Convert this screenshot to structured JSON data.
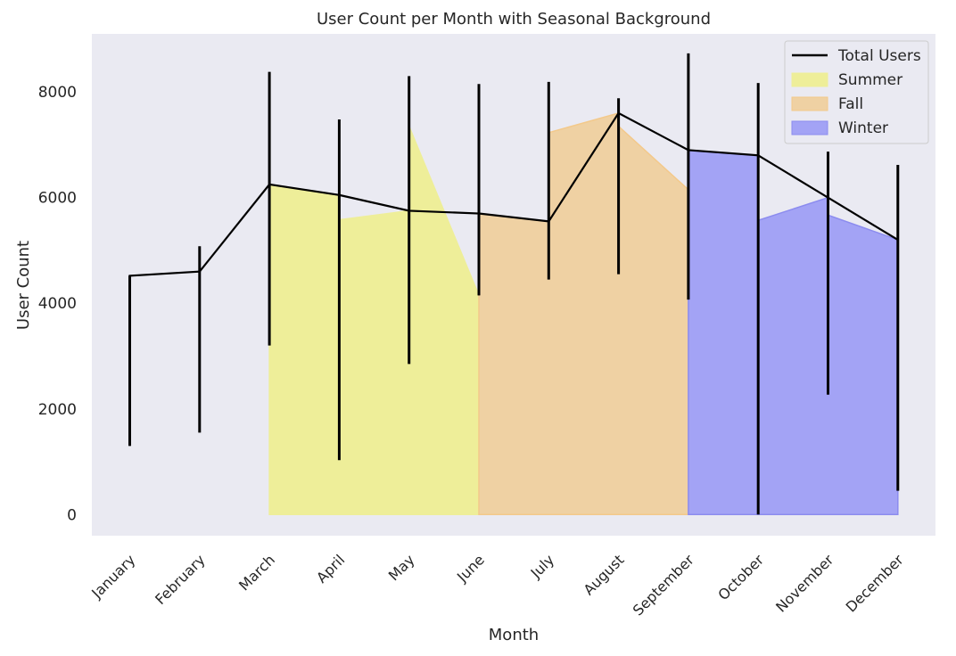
{
  "chart_data": {
    "type": "line",
    "title": "User Count per Month with Seasonal Background",
    "xlabel": "Month",
    "ylabel": "User Count",
    "categories": [
      "January",
      "February",
      "March",
      "April",
      "May",
      "June",
      "July",
      "August",
      "September",
      "October",
      "November",
      "December"
    ],
    "ylim": [
      -400,
      9100
    ],
    "yticks": [
      0,
      2000,
      4000,
      6000,
      8000
    ],
    "grid": false,
    "legend_position": "top-right",
    "background_color": "#eaeaf2",
    "series": [
      {
        "name": "Total Users",
        "color": "#000000",
        "values": [
          4520,
          4600,
          6250,
          6050,
          5750,
          5700,
          5550,
          7600,
          6900,
          6800,
          6000,
          5200
        ],
        "segments": [
          {
            "x": 0,
            "start": 1300,
            "end": 4520
          },
          {
            "x": 1,
            "start": 1850,
            "end": 4600
          },
          {
            "x": 2,
            "start": 5000,
            "end": 6250
          },
          {
            "x": 3,
            "start": 5580,
            "end": 6050
          },
          {
            "x": 4,
            "start": 7350,
            "end": 5750
          },
          {
            "x": 5,
            "start": 4150,
            "end": 5700
          },
          {
            "x": 6,
            "start": 7230,
            "end": 5550
          },
          {
            "x": 7,
            "start": 7350,
            "end": 7600
          },
          {
            "x": 8,
            "start": 6150,
            "end": 6900
          },
          {
            "x": 9,
            "start": 5570,
            "end": 6800
          },
          {
            "x": 10,
            "start": 5670,
            "end": 6000
          },
          {
            "x": 11,
            "start": 5200,
            "end": 5200
          }
        ],
        "error_bars": [
          {
            "x": 0,
            "low": 1300,
            "high": 4520
          },
          {
            "x": 1,
            "low": 1550,
            "high": 5080
          },
          {
            "x": 2,
            "low": 3200,
            "high": 8380
          },
          {
            "x": 3,
            "low": 1030,
            "high": 7480
          },
          {
            "x": 4,
            "low": 2850,
            "high": 8300
          },
          {
            "x": 5,
            "low": 4150,
            "high": 8150
          },
          {
            "x": 6,
            "low": 4450,
            "high": 8190
          },
          {
            "x": 7,
            "low": 4550,
            "high": 7880
          },
          {
            "x": 8,
            "low": 4070,
            "high": 8730
          },
          {
            "x": 9,
            "low": 0,
            "high": 8170
          },
          {
            "x": 10,
            "low": 2270,
            "high": 6870
          },
          {
            "x": 11,
            "low": 450,
            "high": 6620
          }
        ]
      },
      {
        "name": "Summer",
        "type": "area",
        "color": "#eeee99",
        "edge_color": "#eeee99",
        "points": [
          [
            2,
            5000
          ],
          [
            2,
            6250
          ],
          [
            3,
            6050
          ],
          [
            3,
            5580
          ],
          [
            4,
            5750
          ],
          [
            4,
            7350
          ],
          [
            5,
            4150
          ]
        ]
      },
      {
        "name": "Fall",
        "type": "area",
        "color": "#efd1a3",
        "edge_color": "#f3c98b",
        "points": [
          [
            5,
            4150
          ],
          [
            5,
            5700
          ],
          [
            6,
            5550
          ],
          [
            6,
            7230
          ],
          [
            7,
            7600
          ],
          [
            7,
            7350
          ],
          [
            8,
            6150
          ]
        ]
      },
      {
        "name": "Winter",
        "type": "area",
        "color": "#a3a3f5",
        "edge_color": "#8c8cef",
        "points": [
          [
            8,
            6150
          ],
          [
            8,
            6900
          ],
          [
            9,
            6800
          ],
          [
            9,
            5570
          ],
          [
            10,
            6000
          ],
          [
            10,
            5670
          ],
          [
            11,
            5200
          ]
        ]
      }
    ]
  }
}
